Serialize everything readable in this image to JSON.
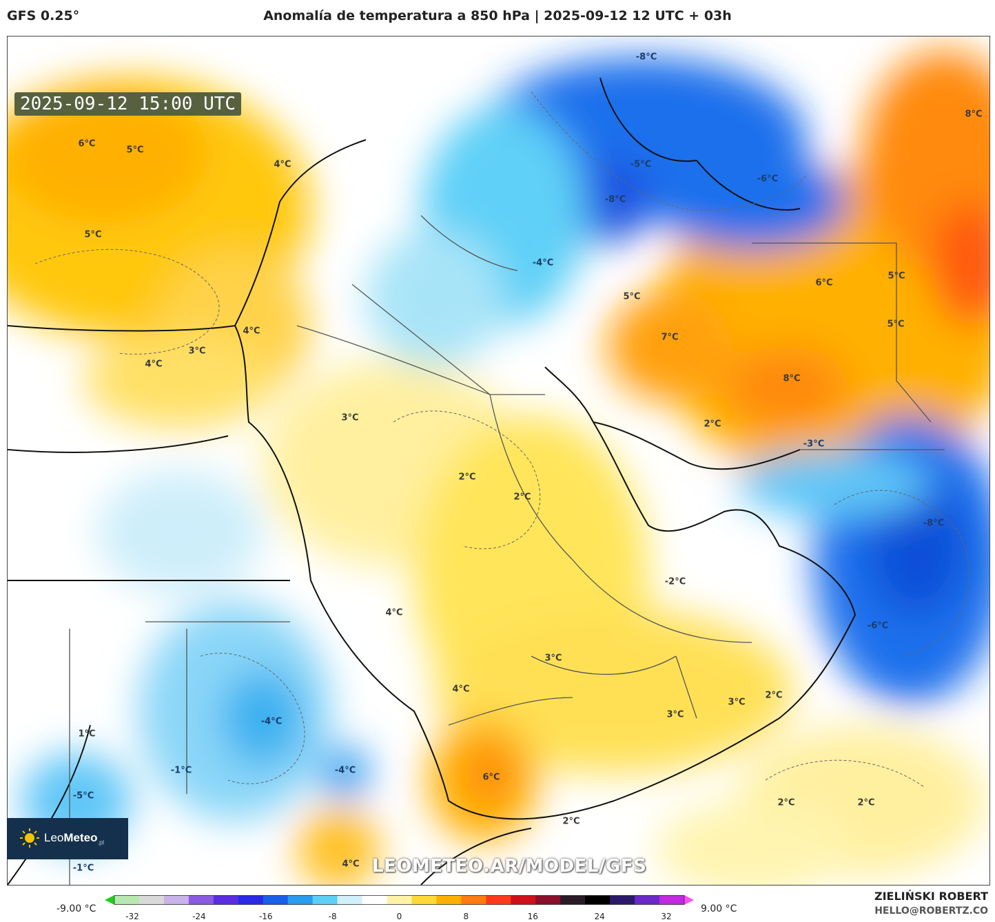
{
  "header": {
    "model": "GFS 0.25°",
    "title": "Anomalía de temperatura a 850 hPa | 2025-09-12 12 UTC + 03h"
  },
  "map": {
    "valid_time": "2025-09-12 15:00 UTC",
    "watermark": "LEOMETEO.AR/MODEL/GFS",
    "labels": [
      {
        "text": "-8°C"
      },
      {
        "text": "8°C"
      },
      {
        "text": "6°C"
      },
      {
        "text": "5°C"
      },
      {
        "text": "4°C"
      },
      {
        "text": "-5°C"
      },
      {
        "text": "-6°C"
      },
      {
        "text": "-8°C"
      },
      {
        "text": "5°C"
      },
      {
        "text": "-4°C"
      },
      {
        "text": "5°C"
      },
      {
        "text": "6°C"
      },
      {
        "text": "5°C"
      },
      {
        "text": "5°C"
      },
      {
        "text": "4°C"
      },
      {
        "text": "7°C"
      },
      {
        "text": "4°C"
      },
      {
        "text": "3°C"
      },
      {
        "text": "8°C"
      },
      {
        "text": "3°C"
      },
      {
        "text": "2°C"
      },
      {
        "text": "-3°C"
      },
      {
        "text": "2°C"
      },
      {
        "text": "2°C"
      },
      {
        "text": "-8°C"
      },
      {
        "text": "-2°C"
      },
      {
        "text": "4°C"
      },
      {
        "text": "-6°C"
      },
      {
        "text": "3°C"
      },
      {
        "text": "4°C"
      },
      {
        "text": "2°C"
      },
      {
        "text": "3°C"
      },
      {
        "text": "3°C"
      },
      {
        "text": "1°C"
      },
      {
        "text": "-4°C"
      },
      {
        "text": "-4°C"
      },
      {
        "text": "-1°C"
      },
      {
        "text": "6°C"
      },
      {
        "text": "-5°C"
      },
      {
        "text": "2°C"
      },
      {
        "text": "2°C"
      },
      {
        "text": "2°C"
      },
      {
        "text": "-1°C"
      },
      {
        "text": "4°C"
      }
    ]
  },
  "logo": {
    "brand_light": "Leo",
    "brand_bold": "Meteo",
    "suffix": ".pl"
  },
  "colorbar": {
    "min_label": "-9.00 °C",
    "max_label": "9.00 °C",
    "ticks": [
      "-32",
      "-24",
      "-16",
      "-8",
      "0",
      "8",
      "16",
      "24",
      "32"
    ],
    "colors": [
      "#1fcf1f",
      "#b7e8b0",
      "#d9d9d9",
      "#c9b3e8",
      "#8a5be0",
      "#5a2ee0",
      "#2a2ae6",
      "#1a5fe8",
      "#2a9cf0",
      "#5ed0f7",
      "#d2f0fb",
      "#ffffff",
      "#fff3a8",
      "#ffd93a",
      "#ffb000",
      "#ff7a10",
      "#ff3a1a",
      "#d0101a",
      "#8a0f2a",
      "#2a1a2a",
      "#000000",
      "#2a1a6a",
      "#6a2ac8",
      "#c02ae0",
      "#ff4df0"
    ]
  },
  "credit": {
    "name": "ZIELIŃSKI ROBERT",
    "email": "HELLO@ROBERTZ.CO"
  }
}
